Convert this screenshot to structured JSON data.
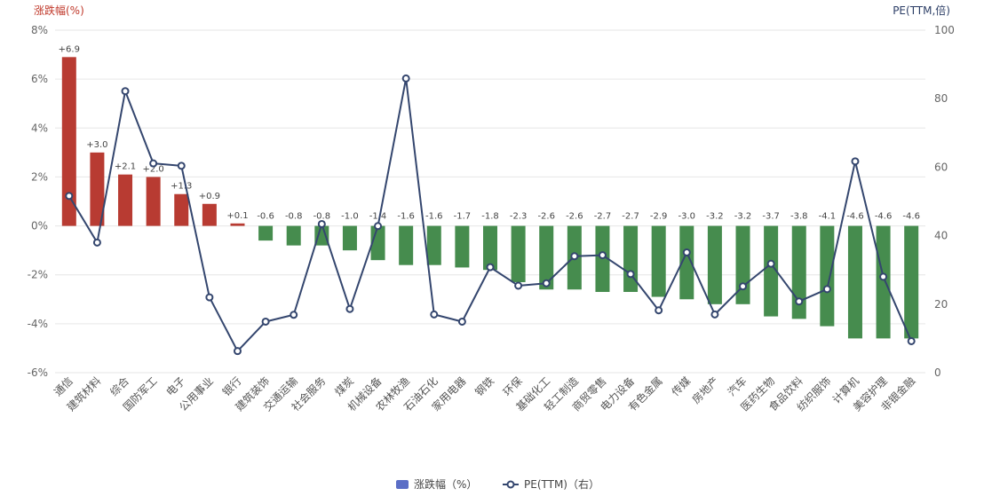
{
  "chart_data": {
    "type": "bar+line",
    "left_axis": {
      "title": "涨跌幅(%)",
      "min": -6,
      "max": 8,
      "ticks": [
        -6,
        -4,
        -2,
        0,
        2,
        4,
        6,
        8
      ],
      "tick_labels": [
        "-6%",
        "-4%",
        "-2%",
        "0%",
        "2%",
        "4%",
        "6%",
        "8%"
      ],
      "title_color": "#c0392b"
    },
    "right_axis": {
      "title": "PE(TTM,倍)",
      "min": 0,
      "max": 100,
      "ticks": [
        0,
        20,
        40,
        60,
        80,
        100
      ],
      "tick_labels": [
        "0",
        "20",
        "40",
        "60",
        "80",
        "100"
      ],
      "title_color": "#2c3e66"
    },
    "categories": [
      "通信",
      "建筑材料",
      "综合",
      "国防军工",
      "电子",
      "公用事业",
      "银行",
      "建筑装饰",
      "交通运输",
      "社会服务",
      "煤炭",
      "机械设备",
      "农林牧渔",
      "石油石化",
      "家用电器",
      "钢铁",
      "环保",
      "基础化工",
      "轻工制造",
      "商贸零售",
      "电力设备",
      "有色金属",
      "传媒",
      "房地产",
      "汽车",
      "医药生物",
      "食品饮料",
      "纺织服饰",
      "计算机",
      "美容护理",
      "非银金融"
    ],
    "series": [
      {
        "name": "涨跌幅（%）",
        "type": "bar",
        "axis": "left",
        "values": [
          6.9,
          3.0,
          2.1,
          2.0,
          1.3,
          0.9,
          0.1,
          -0.6,
          -0.8,
          -0.8,
          -1.0,
          -1.4,
          -1.6,
          -1.6,
          -1.7,
          -1.8,
          -2.3,
          -2.6,
          -2.6,
          -2.7,
          -2.7,
          -2.9,
          -3.0,
          -3.2,
          -3.2,
          -3.7,
          -3.8,
          -4.1,
          -4.6,
          -4.6,
          -4.6
        ],
        "labels": [
          "+6.9",
          "+3.0",
          "+2.1",
          "+2.0",
          "+1.3",
          "+0.9",
          "+0.1",
          "-0.6",
          "-0.8",
          "-0.8",
          "-1.0",
          "-1.4",
          "-1.6",
          "-1.6",
          "-1.7",
          "-1.8",
          "-2.3",
          "-2.6",
          "-2.6",
          "-2.7",
          "-2.7",
          "-2.9",
          "-3.0",
          "-3.2",
          "-3.2",
          "-3.7",
          "-3.8",
          "-4.1",
          "-4.6",
          "-4.6",
          "-4.6"
        ],
        "positive_color": "#b83b32",
        "negative_color": "#468c4e",
        "legend_color": "#5b6ec6"
      },
      {
        "name": "PE(TTM)（右）",
        "type": "line",
        "axis": "right",
        "values": [
          51.6,
          38.0,
          82.2,
          61.1,
          60.4,
          22.0,
          6.3,
          14.9,
          16.9,
          43.4,
          18.6,
          42.8,
          85.9,
          17.0,
          14.9,
          30.8,
          25.4,
          26.1,
          34.0,
          34.3,
          28.8,
          18.2,
          35.1,
          17.0,
          25.2,
          31.8,
          20.8,
          24.4,
          61.7,
          28.0,
          9.2
        ],
        "color": "#34466e"
      }
    ],
    "grid": true,
    "legend": "bottom-center"
  }
}
